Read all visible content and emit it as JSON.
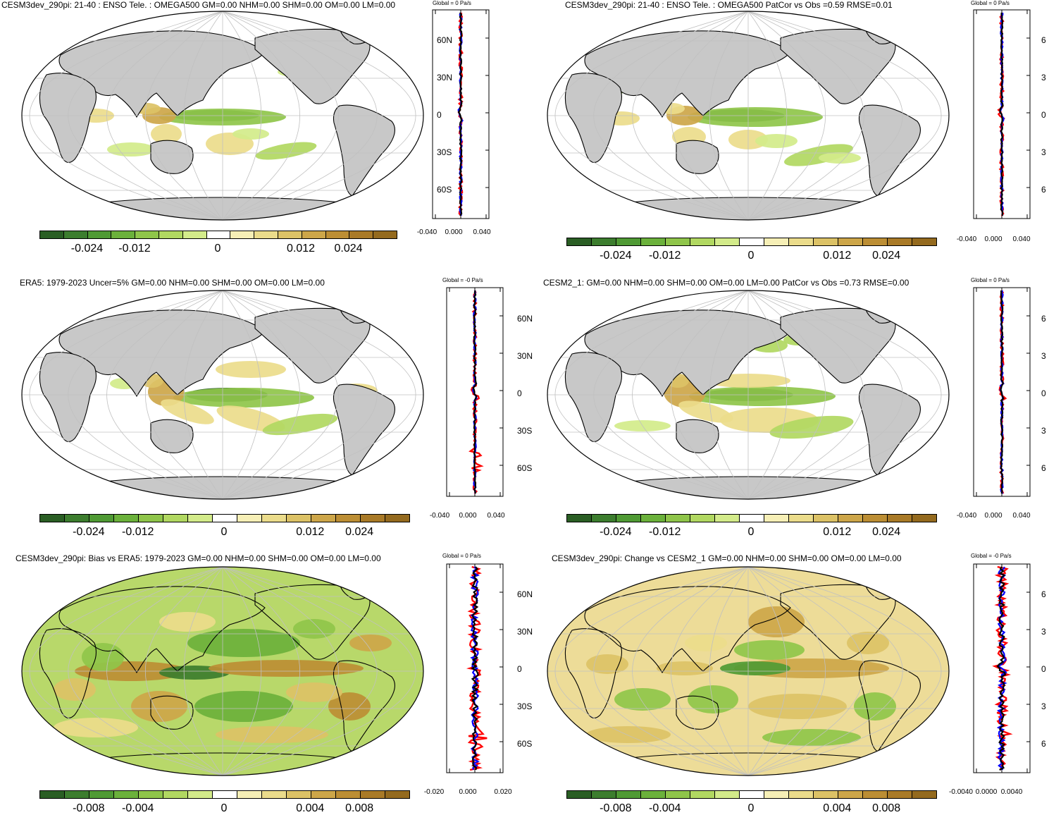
{
  "colors": {
    "land": "#c8c8c8",
    "ocean": "#ffffff",
    "grid": "#c0c0c0",
    "red_line": "#ff0000",
    "blue_line": "#0000ff",
    "black_line": "#000000"
  },
  "colormap": [
    "#2a5e24",
    "#3c7d2e",
    "#4f9a34",
    "#6bb13b",
    "#8fc54a",
    "#b1d861",
    "#d3eb8a",
    "#ffffff",
    "#f6efb6",
    "#ebdc8b",
    "#dcc266",
    "#cda649",
    "#bc8e34",
    "#a97a27",
    "#946a1e"
  ],
  "panels": [
    {
      "id": "p1",
      "title": "CESM3dev_290pi: 21-40 : ENSO Tele. : OMEGA500 GM=0.00 NHM=0.00 SHM=0.00 OM=0.00 LM=0.00",
      "zonal_title": "Global = 0 Pa/s",
      "lat_labels": [
        "60N",
        "30N",
        "0",
        "30S",
        "60S"
      ],
      "x_ticks": [
        "-0.040",
        "0.000",
        "0.040"
      ],
      "cbar_labels": [
        "-0.024",
        "-0.012",
        "0",
        "0.012",
        "0.024"
      ]
    },
    {
      "id": "p2",
      "title": "CESM3dev_290pi: 21-40 : ENSO Tele. : OMEGA500 PatCor vs Obs =0.59 RMSE=0.01",
      "zonal_title": "Global = 0 Pa/s",
      "lat_labels": [
        "6",
        "3",
        "0",
        "3",
        "6"
      ],
      "x_ticks": [
        "-0.040",
        "0.000",
        "0.040"
      ],
      "cbar_labels": [
        "-0.024",
        "-0.012",
        "0",
        "0.012",
        "0.024"
      ]
    },
    {
      "id": "p3",
      "title": "ERA5: 1979-2023 Uncer=5% GM=0.00 NHM=0.00 SHM=0.00 OM=0.00 LM=0.00",
      "zonal_title": "Global = -0 Pa/s",
      "lat_labels": [
        "60N",
        "30N",
        "0",
        "30S",
        "60S"
      ],
      "x_ticks": [
        "-0.040",
        "0.000",
        "0.040"
      ],
      "cbar_labels": [
        "-0.024",
        "-0.012",
        "0",
        "0.012",
        "0.024"
      ]
    },
    {
      "id": "p4",
      "title": "CESM2_1: GM=0.00 NHM=0.00 SHM=0.00 OM=0.00 LM=0.00 PatCor vs Obs =0.73 RMSE=0.00",
      "zonal_title": "Global = 0 Pa/s",
      "lat_labels": [
        "6",
        "3",
        "0",
        "3",
        "6"
      ],
      "x_ticks": [
        "-0.040",
        "0.000",
        "0.040"
      ],
      "cbar_labels": [
        "-0.024",
        "-0.012",
        "0",
        "0.012",
        "0.024"
      ]
    },
    {
      "id": "p5",
      "title": "CESM3dev_290pi: Bias vs ERA5: 1979-2023 GM=0.00 NHM=0.00 SHM=0.00 OM=0.00 LM=0.00",
      "zonal_title": "Global = 0 Pa/s",
      "lat_labels": [
        "60N",
        "30N",
        "0",
        "30S",
        "60S"
      ],
      "x_ticks": [
        "-0.020",
        "0.000",
        "0.020"
      ],
      "cbar_labels": [
        "-0.008",
        "-0.004",
        "0",
        "0.004",
        "0.008"
      ]
    },
    {
      "id": "p6",
      "title": "CESM3dev_290pi: Change vs CESM2_1 GM=0.00 NHM=0.00 SHM=0.00 OM=0.00 LM=0.00",
      "zonal_title": "Global = -0 Pa/s",
      "lat_labels": [
        "6",
        "3",
        "0",
        "3",
        "6"
      ],
      "x_ticks": [
        "-0.0040",
        "0.0000",
        "0.0040"
      ],
      "cbar_labels": [
        "-0.008",
        "-0.004",
        "0",
        "0.004",
        "0.008"
      ]
    }
  ]
}
